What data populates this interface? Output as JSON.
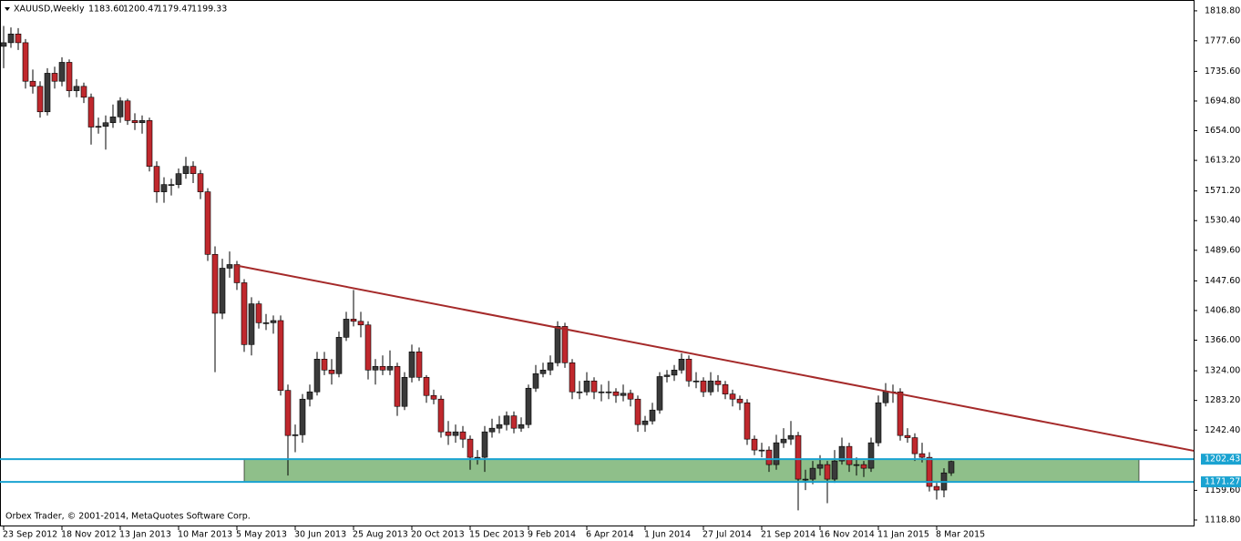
{
  "header": {
    "symbol": "XAUUSD,Weekly",
    "ohlc": [
      "1183.60",
      "1200.47",
      "1179.47",
      "1199.33"
    ]
  },
  "footer": "Orbex Trader, © 2001-2014, MetaQuotes Software Corp.",
  "chart_data": {
    "type": "candlestick",
    "categories": [
      "23 Sep 2012",
      null,
      null,
      null,
      null,
      null,
      null,
      null,
      "18 Nov 2012",
      null,
      null,
      null,
      null,
      null,
      null,
      null,
      "13 Jan 2013",
      null,
      null,
      null,
      null,
      null,
      null,
      null,
      "10 Mar 2013",
      null,
      null,
      null,
      null,
      null,
      null,
      null,
      "5 May 2013",
      null,
      null,
      null,
      null,
      null,
      null,
      null,
      "30 Jun 2013",
      null,
      null,
      null,
      null,
      null,
      null,
      null,
      "25 Aug 2013",
      null,
      null,
      null,
      null,
      null,
      null,
      null,
      "20 Oct 2013",
      null,
      null,
      null,
      null,
      null,
      null,
      null,
      "15 Dec 2013",
      null,
      null,
      null,
      null,
      null,
      null,
      null,
      "9 Feb 2014",
      null,
      null,
      null,
      null,
      null,
      null,
      null,
      "6 Apr 2014",
      null,
      null,
      null,
      null,
      null,
      null,
      null,
      "1 Jun 2014",
      null,
      null,
      null,
      null,
      null,
      null,
      null,
      "27 Jul 2014",
      null,
      null,
      null,
      null,
      null,
      null,
      null,
      "21 Sep 2014",
      null,
      null,
      null,
      null,
      null,
      null,
      null,
      "16 Nov 2014",
      null,
      null,
      null,
      null,
      null,
      null,
      null,
      "11 Jan 2015",
      null,
      null,
      null,
      null,
      null,
      null,
      null,
      "8 Mar 2015",
      null,
      null
    ],
    "open": [
      1770,
      1775,
      1787,
      1775,
      1722,
      1715,
      1680,
      1733,
      1722,
      1748,
      1709,
      1715,
      1700,
      1659,
      1660,
      1665,
      1673,
      1695,
      1668,
      1665,
      1668,
      1605,
      1570,
      1580,
      1580,
      1595,
      1605,
      1595,
      1570,
      1484,
      1403,
      1465,
      1470,
      1445,
      1360,
      1416,
      1390,
      1390,
      1393,
      1297,
      1235,
      1236,
      1285,
      1295,
      1340,
      1325,
      1320,
      1370,
      1395,
      1392,
      1387,
      1325,
      1330,
      1325,
      1330,
      1275,
      1315,
      1350,
      1315,
      1290,
      1285,
      1240,
      1235,
      1240,
      1230,
      1205,
      1205,
      1240,
      1245,
      1250,
      1262,
      1245,
      1250,
      1300,
      1320,
      1325,
      1335,
      1385,
      1335,
      1295,
      1295,
      1310,
      1295,
      1295,
      1295,
      1290,
      1293,
      1285,
      1250,
      1255,
      1270,
      1316,
      1318,
      1325,
      1340,
      1310,
      1310,
      1295,
      1310,
      1305,
      1292,
      1285,
      1280,
      1230,
      1215,
      1215,
      1195,
      1225,
      1230,
      1235,
      1175,
      1175,
      1190,
      1195,
      1175,
      1200,
      1220,
      1195,
      1195,
      1190,
      1225,
      1280,
      1295,
      1295,
      1235,
      1232,
      1210,
      1205,
      1165,
      1160,
      1183.6
    ],
    "high": [
      1798,
      1796,
      1795,
      1780,
      1738,
      1722,
      1740,
      1742,
      1755,
      1752,
      1725,
      1720,
      1705,
      1672,
      1675,
      1690,
      1700,
      1698,
      1678,
      1675,
      1672,
      1612,
      1590,
      1588,
      1602,
      1618,
      1612,
      1600,
      1575,
      1495,
      1478,
      1488,
      1475,
      1450,
      1425,
      1420,
      1402,
      1400,
      1400,
      1305,
      1250,
      1292,
      1305,
      1350,
      1350,
      1340,
      1378,
      1405,
      1435,
      1405,
      1392,
      1340,
      1345,
      1352,
      1335,
      1322,
      1360,
      1356,
      1318,
      1298,
      1290,
      1255,
      1250,
      1248,
      1235,
      1215,
      1248,
      1258,
      1262,
      1268,
      1268,
      1260,
      1305,
      1332,
      1335,
      1345,
      1392,
      1390,
      1340,
      1310,
      1322,
      1315,
      1305,
      1310,
      1300,
      1305,
      1298,
      1290,
      1262,
      1280,
      1322,
      1325,
      1332,
      1348,
      1345,
      1322,
      1315,
      1322,
      1318,
      1310,
      1298,
      1290,
      1285,
      1235,
      1225,
      1220,
      1236,
      1245,
      1255,
      1240,
      1188,
      1200,
      1208,
      1200,
      1215,
      1232,
      1225,
      1205,
      1200,
      1232,
      1290,
      1307,
      1305,
      1300,
      1245,
      1238,
      1225,
      1212,
      1170,
      1190,
      1200.47
    ],
    "low": [
      1740,
      1768,
      1765,
      1712,
      1705,
      1672,
      1675,
      1712,
      1715,
      1700,
      1700,
      1692,
      1635,
      1650,
      1628,
      1658,
      1665,
      1662,
      1655,
      1650,
      1598,
      1555,
      1555,
      1565,
      1575,
      1588,
      1582,
      1560,
      1475,
      1322,
      1395,
      1452,
      1435,
      1350,
      1345,
      1382,
      1380,
      1375,
      1290,
      1180,
      1212,
      1225,
      1275,
      1290,
      1318,
      1305,
      1315,
      1365,
      1385,
      1370,
      1312,
      1305,
      1318,
      1318,
      1262,
      1270,
      1308,
      1310,
      1280,
      1278,
      1232,
      1222,
      1225,
      1218,
      1188,
      1195,
      1185,
      1232,
      1238,
      1242,
      1238,
      1240,
      1245,
      1295,
      1315,
      1318,
      1330,
      1328,
      1285,
      1285,
      1290,
      1285,
      1282,
      1285,
      1280,
      1282,
      1275,
      1240,
      1240,
      1250,
      1265,
      1308,
      1310,
      1320,
      1302,
      1300,
      1288,
      1290,
      1295,
      1285,
      1275,
      1270,
      1222,
      1208,
      1205,
      1185,
      1188,
      1218,
      1222,
      1132,
      1160,
      1168,
      1180,
      1142,
      1170,
      1195,
      1185,
      1180,
      1178,
      1185,
      1220,
      1275,
      1280,
      1228,
      1225,
      1200,
      1198,
      1158,
      1147,
      1150,
      1179.47
    ],
    "close": [
      1775,
      1787,
      1775,
      1722,
      1715,
      1680,
      1733,
      1722,
      1748,
      1709,
      1715,
      1700,
      1659,
      1660,
      1665,
      1673,
      1695,
      1668,
      1665,
      1668,
      1605,
      1570,
      1580,
      1580,
      1595,
      1605,
      1595,
      1570,
      1484,
      1403,
      1465,
      1470,
      1445,
      1360,
      1416,
      1390,
      1390,
      1393,
      1297,
      1235,
      1236,
      1285,
      1295,
      1340,
      1325,
      1320,
      1370,
      1395,
      1392,
      1387,
      1325,
      1330,
      1325,
      1330,
      1275,
      1315,
      1350,
      1315,
      1290,
      1285,
      1240,
      1235,
      1240,
      1230,
      1205,
      1205,
      1240,
      1245,
      1250,
      1262,
      1245,
      1250,
      1300,
      1320,
      1325,
      1335,
      1385,
      1335,
      1295,
      1295,
      1310,
      1295,
      1295,
      1295,
      1290,
      1293,
      1285,
      1250,
      1255,
      1270,
      1316,
      1318,
      1325,
      1340,
      1310,
      1310,
      1295,
      1310,
      1305,
      1292,
      1285,
      1280,
      1230,
      1215,
      1215,
      1195,
      1225,
      1230,
      1235,
      1175,
      1175,
      1190,
      1195,
      1175,
      1200,
      1220,
      1195,
      1195,
      1190,
      1225,
      1280,
      1295,
      1295,
      1235,
      1232,
      1210,
      1205,
      1165,
      1160,
      1183.6,
      1199.33
    ],
    "up_color": "#3a3a3a",
    "down_color": "#c0282d",
    "ylim": [
      1110,
      1833.7
    ],
    "yticks": [
      {
        "value": 1818.8,
        "label": "1818.80"
      },
      {
        "value": 1777.6,
        "label": "1777.60"
      },
      {
        "value": 1735.6,
        "label": "1735.60"
      },
      {
        "value": 1694.8,
        "label": "1694.80"
      },
      {
        "value": 1654,
        "label": "1654.00"
      },
      {
        "value": 1613.2,
        "label": "1613.20"
      },
      {
        "value": 1571.2,
        "label": "1571.20"
      },
      {
        "value": 1530.4,
        "label": "1530.40"
      },
      {
        "value": 1489.6,
        "label": "1489.60"
      },
      {
        "value": 1447.6,
        "label": "1447.60"
      },
      {
        "value": 1406.8,
        "label": "1406.80"
      },
      {
        "value": 1366,
        "label": "1366.00"
      },
      {
        "value": 1324,
        "label": "1324.00"
      },
      {
        "value": 1283.2,
        "label": "1283.20"
      },
      {
        "value": 1242.4,
        "label": "1242.40"
      },
      {
        "value": 1159.6,
        "label": "1159.60"
      },
      {
        "value": 1118.8,
        "label": "1118.80"
      }
    ],
    "levels": [
      1202.43,
      1171.27
    ],
    "level_color": "#1aa3d1",
    "zone_color": "#8fbf8a",
    "trendline": {
      "start": 1469,
      "end": 1214,
      "color": "#a52a2a"
    }
  }
}
